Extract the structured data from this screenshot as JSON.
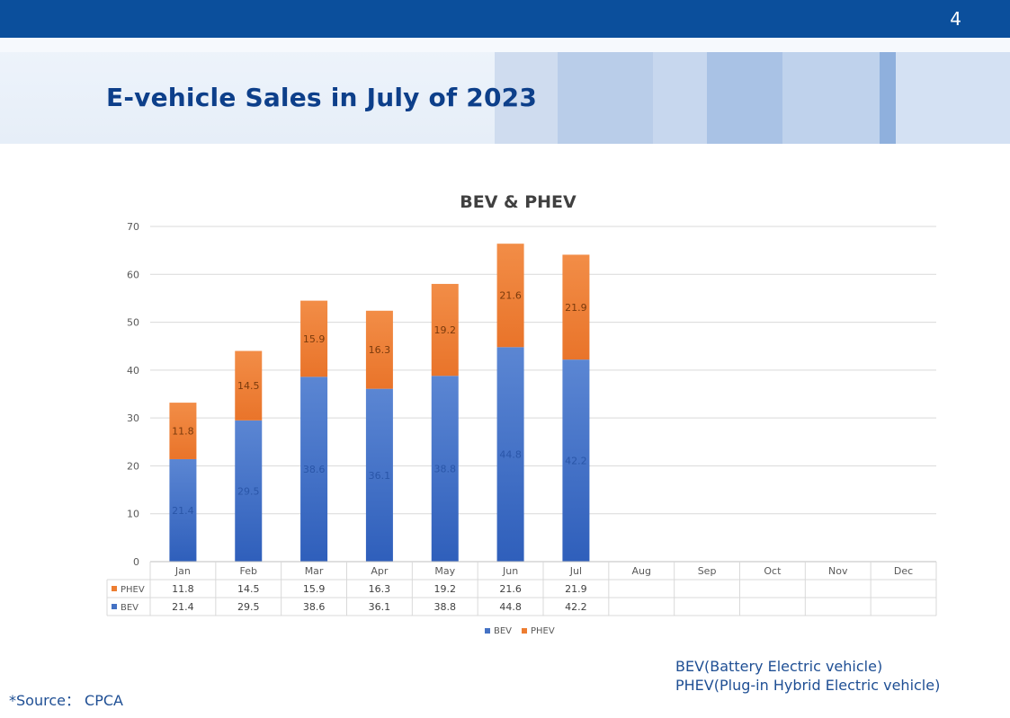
{
  "header": {
    "page_number": "4",
    "title": "E-vehicle Sales in July of 2023"
  },
  "notes": {
    "bev_note": "BEV(Battery Electric vehicle)",
    "phev_note": "PHEV(Plug-in Hybrid Electric vehicle)",
    "source": "*Source： CPCA"
  },
  "colors": {
    "bev": "#4472c4",
    "phev": "#ed7d31",
    "header_bar": "#0b4f9c",
    "title": "#0d3f8a"
  },
  "chart_data": {
    "type": "bar",
    "stacked": true,
    "title": "BEV & PHEV",
    "categories": [
      "Jan",
      "Feb",
      "Mar",
      "Apr",
      "May",
      "Jun",
      "Jul",
      "Aug",
      "Sep",
      "Oct",
      "Nov",
      "Dec"
    ],
    "series": [
      {
        "name": "BEV",
        "color": "#4472c4",
        "values": [
          21.4,
          29.5,
          38.6,
          36.1,
          38.8,
          44.8,
          42.2,
          null,
          null,
          null,
          null,
          null
        ]
      },
      {
        "name": "PHEV",
        "color": "#ed7d31",
        "values": [
          11.8,
          14.5,
          15.9,
          16.3,
          19.2,
          21.6,
          21.9,
          null,
          null,
          null,
          null,
          null
        ]
      }
    ],
    "ylim": [
      0,
      70
    ],
    "yticks": [
      0,
      10,
      20,
      30,
      40,
      50,
      60,
      70
    ],
    "grid": true,
    "legend": "bottom",
    "data_table": true
  }
}
